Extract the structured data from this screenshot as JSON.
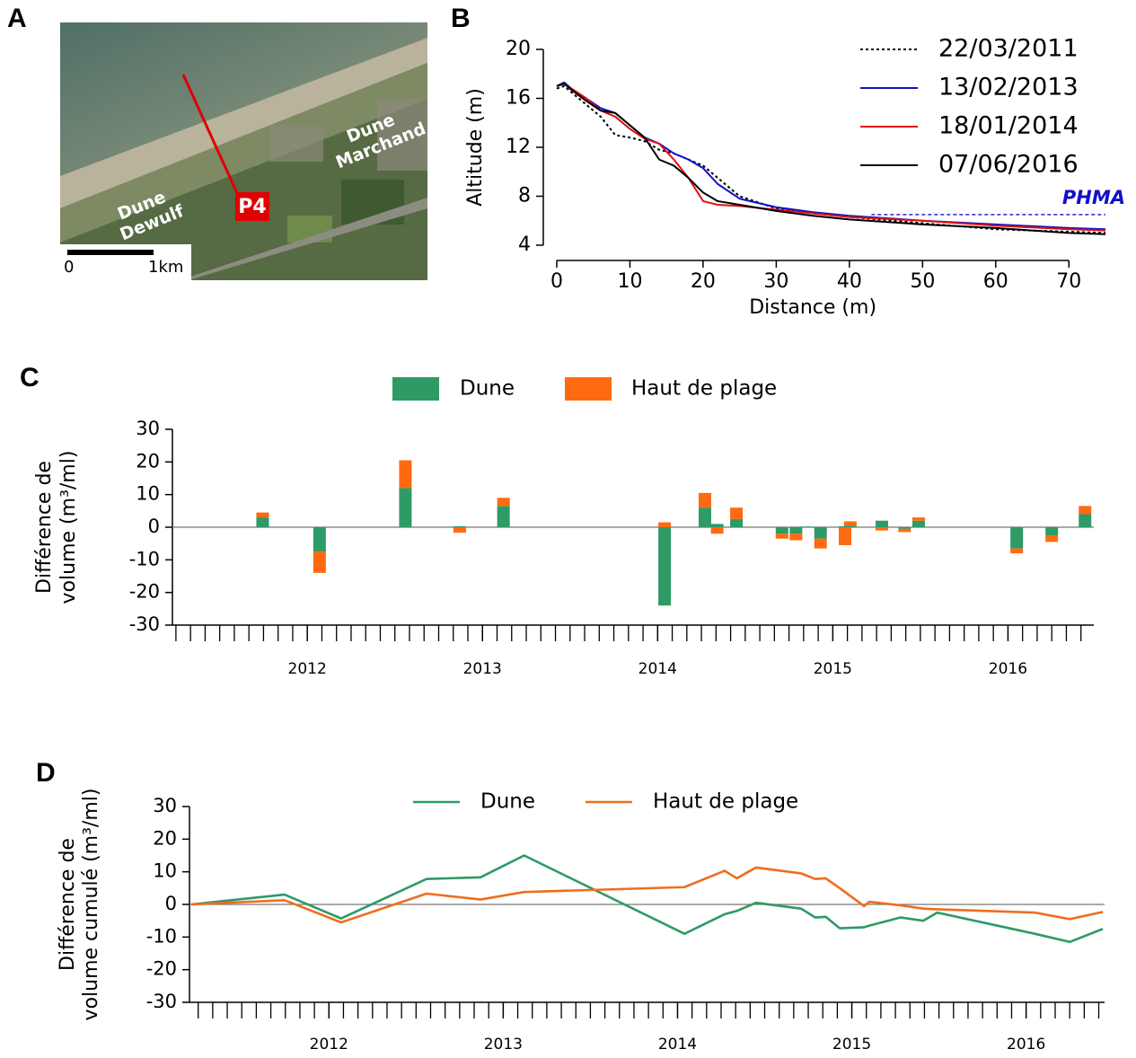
{
  "chart_data": [
    {
      "type": "map",
      "panel": "A",
      "labels": [
        [
          "Dune",
          "Dewulf"
        ],
        [
          "Dune",
          "Marchand"
        ]
      ],
      "marker": "P4",
      "scale_labels": [
        "0",
        "1km"
      ]
    },
    {
      "type": "line",
      "panel": "B",
      "xlabel": "Distance (m)",
      "ylabel": "Altitude (m)",
      "x": [
        0,
        1,
        2,
        4,
        6,
        8,
        10,
        12,
        14,
        16,
        18,
        20,
        22,
        25,
        30,
        35,
        40,
        50,
        60,
        70,
        75
      ],
      "series": [
        {
          "name": "22/03/2011",
          "color": "#000000",
          "linestyle": "dotted",
          "values": [
            16.8,
            17,
            16.5,
            15.5,
            14.5,
            13,
            12.8,
            12.5,
            11.8,
            11.5,
            11,
            10.5,
            9.5,
            8,
            7,
            6.6,
            6.3,
            5.8,
            5.3,
            5.1,
            5.0
          ]
        },
        {
          "name": "13/02/2013",
          "color": "#1010c8",
          "linestyle": "solid",
          "values": [
            17,
            17.3,
            16.8,
            16,
            15.2,
            14.8,
            13.8,
            12.8,
            12.3,
            11.5,
            11,
            10.3,
            9,
            7.8,
            7.1,
            6.7,
            6.4,
            6.0,
            5.7,
            5.4,
            5.3
          ]
        },
        {
          "name": "18/01/2014",
          "color": "#e01010",
          "linestyle": "solid",
          "values": [
            17,
            17.2,
            16.8,
            16,
            15,
            14.5,
            13.5,
            12.7,
            12.3,
            11,
            9.5,
            7.6,
            7.3,
            7.2,
            6.9,
            6.6,
            6.3,
            6.0,
            5.6,
            5.3,
            5.2
          ]
        },
        {
          "name": "07/06/2016",
          "color": "#000000",
          "linestyle": "solid",
          "values": [
            17,
            17.2,
            16.7,
            15.8,
            15,
            14.8,
            13.8,
            12.8,
            11,
            10.5,
            9.5,
            8.3,
            7.6,
            7.3,
            6.8,
            6.4,
            6.1,
            5.7,
            5.4,
            5.0,
            4.9
          ]
        }
      ],
      "reference_line": {
        "label": "PHMA",
        "value": 6.5,
        "x_start": 43,
        "color": "#1010c8"
      },
      "xlim": [
        0,
        75
      ],
      "xticks": [
        0,
        10,
        20,
        30,
        40,
        50,
        60,
        70
      ],
      "ylim": [
        4,
        20
      ],
      "yticks": [
        4,
        8,
        12,
        16,
        20
      ],
      "legend": "upper right"
    },
    {
      "type": "bar",
      "stacked": true,
      "panel": "C",
      "ylabel": [
        "Différence de",
        "volume (m³/ml)"
      ],
      "x": [
        2011.745,
        2012.07,
        2012.56,
        2012.87,
        2013.12,
        2014.04,
        2014.27,
        2014.34,
        2014.45,
        2014.71,
        2014.79,
        2014.85,
        2014.93,
        2015.07,
        2015.1,
        2015.28,
        2015.41,
        2015.49,
        2016.05,
        2016.25,
        2016.44
      ],
      "series": [
        {
          "name": "Dune",
          "color": "#2e9a66",
          "values": [
            3,
            -7.5,
            12,
            0.3,
            6.5,
            -24,
            6,
            1,
            2.5,
            -2,
            -2,
            0.2,
            -3.5,
            0.3,
            0.5,
            2,
            -0.5,
            2,
            -6.5,
            -2.5,
            4
          ]
        },
        {
          "name": "Haut de plage",
          "color": "#ff6a10",
          "values": [
            1.5,
            -6.5,
            8.5,
            -1.7,
            2.5,
            1.5,
            4.5,
            -2,
            3.5,
            -1.5,
            -2,
            0,
            -3,
            -5.5,
            1.3,
            -1,
            -1,
            1,
            -1.5,
            -2,
            2.5
          ]
        }
      ],
      "xlim": [
        2011.23,
        2016.49
      ],
      "xticks": [
        2012,
        2013,
        2014,
        2015,
        2016
      ],
      "ylim": [
        -30,
        30
      ],
      "yticks": [
        -30,
        -20,
        -10,
        0,
        10,
        20,
        30
      ],
      "legend": "top"
    },
    {
      "type": "line",
      "panel": "D",
      "ylabel": [
        "Différence de",
        "volume cumulé (m³/ml)"
      ],
      "x": [
        2011.21,
        2011.745,
        2012.07,
        2012.56,
        2012.87,
        2013.12,
        2014.04,
        2014.27,
        2014.34,
        2014.45,
        2014.71,
        2014.79,
        2014.85,
        2014.93,
        2015.07,
        2015.1,
        2015.28,
        2015.41,
        2015.49,
        2016.05,
        2016.25,
        2016.44
      ],
      "series": [
        {
          "name": "Dune",
          "color": "#2e9a66",
          "values": [
            0,
            3,
            -4.3,
            7.8,
            8.3,
            15,
            -9,
            -3,
            -2,
            0.5,
            -1.3,
            -4,
            -3.8,
            -7.3,
            -7,
            -6.5,
            -4,
            -5,
            -2.5,
            -9,
            -11.5,
            -7.5
          ]
        },
        {
          "name": "Haut de plage",
          "color": "#ee6e1e",
          "values": [
            0,
            1.3,
            -5.5,
            3.3,
            1.5,
            3.8,
            5.3,
            10.3,
            8,
            11.3,
            9.5,
            7.8,
            8,
            5,
            -0.5,
            0.8,
            -0.3,
            -1.3,
            -1.5,
            -2.5,
            -4.5,
            -2.3
          ]
        }
      ],
      "xlim": [
        2011.2,
        2016.45
      ],
      "xticks": [
        2012,
        2013,
        2014,
        2015,
        2016
      ],
      "ylim": [
        -30,
        30
      ],
      "yticks": [
        -30,
        -20,
        -10,
        0,
        10,
        20,
        30
      ],
      "legend": "top"
    }
  ]
}
